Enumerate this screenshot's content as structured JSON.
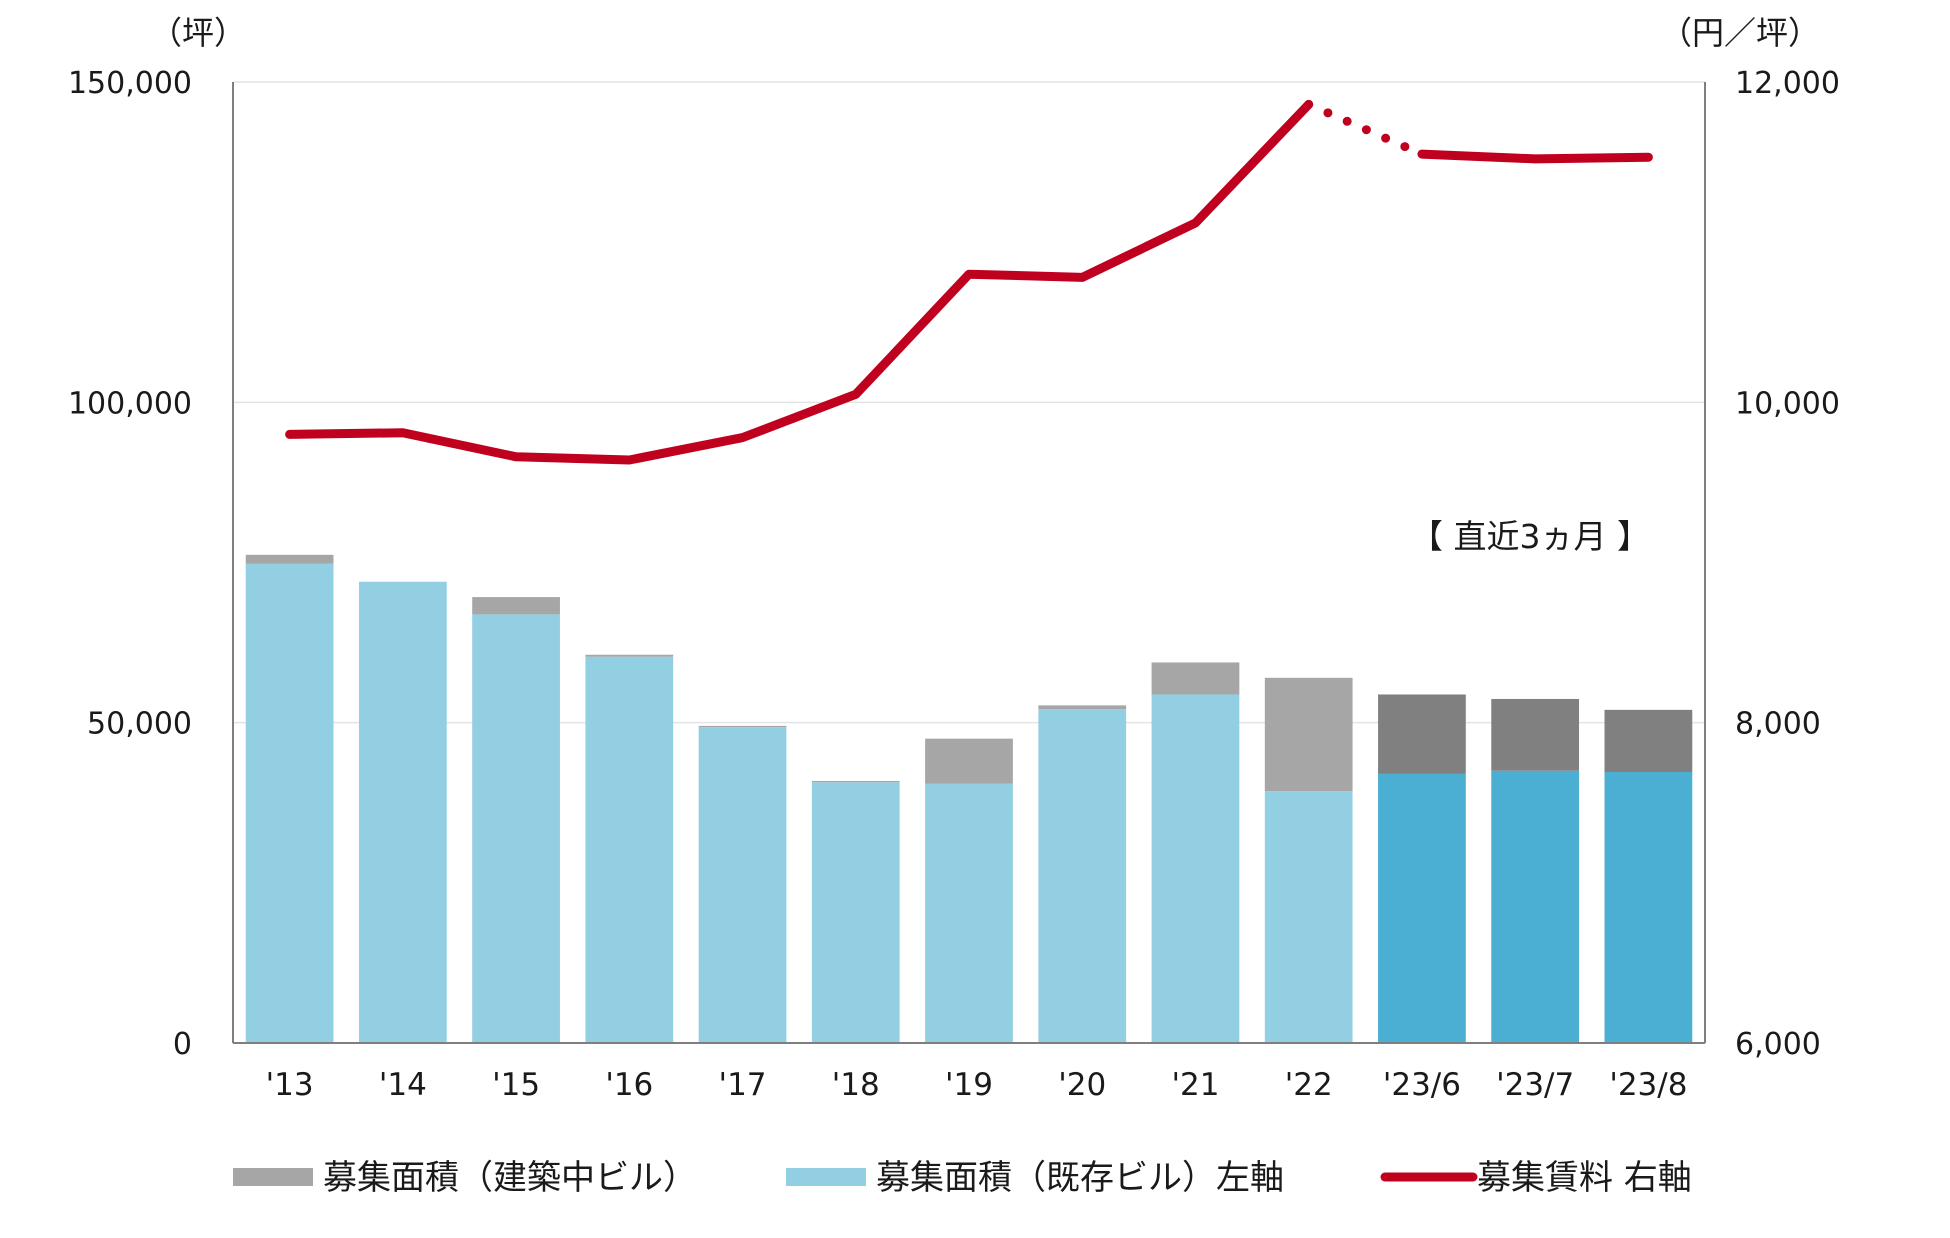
{
  "chart_data": {
    "type": "bar+line",
    "categories": [
      "'13",
      "'14",
      "'15",
      "'16",
      "'17",
      "'18",
      "'19",
      "'20",
      "'21",
      "'22",
      "'23/6",
      "'23/7",
      "'23/8"
    ],
    "series": [
      {
        "name": "募集面積（既存ビル）左軸",
        "type": "stacked-bar",
        "axis": "left",
        "values": [
          74800,
          72000,
          66900,
          60300,
          49300,
          40700,
          40500,
          52100,
          54400,
          39300,
          42000,
          42500,
          42300
        ]
      },
      {
        "name": "募集面積（建築中ビル）",
        "type": "stacked-bar",
        "axis": "left",
        "values": [
          1400,
          0,
          2700,
          300,
          200,
          200,
          7000,
          600,
          5000,
          17700,
          12400,
          11200,
          9700
        ]
      },
      {
        "name": "募集賃料 右軸",
        "type": "line",
        "axis": "right",
        "values": [
          9800,
          9810,
          9660,
          9640,
          9780,
          10050,
          10800,
          10780,
          11120,
          11860,
          11550,
          11520,
          11530
        ],
        "dotted_segment": [
          "'22",
          "'23/6"
        ]
      }
    ],
    "left_axis": {
      "unit": "（坪）",
      "ylim": [
        0,
        150000
      ],
      "ticks": [
        "0",
        "50,000",
        "100,000",
        "150,000"
      ]
    },
    "right_axis": {
      "unit": "（円／坪）",
      "ylim": [
        6000,
        12000
      ],
      "ticks": [
        "6,000",
        "8,000",
        "10,000",
        "12,000"
      ]
    },
    "annotation": "【 直近3ヵ月 】",
    "legend": [
      {
        "label": "募集面積（建築中ビル）",
        "color": "#a6a6a6",
        "symbol": "bar"
      },
      {
        "label": "募集面積（既存ビル）左軸",
        "color": "#92cfe3",
        "symbol": "bar"
      },
      {
        "label": "募集賃料 右軸",
        "color": "#c0001f",
        "symbol": "line"
      }
    ],
    "colors": {
      "existing": "#92cfe3",
      "existing_recent": "#4bafd3",
      "construction": "#a6a6a6",
      "construction_recent": "#808080",
      "line": "#c0001f",
      "grid": "#e4e4e4",
      "axis": "#7f7f7f"
    },
    "recent_count": 3,
    "grid": true,
    "legend_placement": "bottom"
  }
}
